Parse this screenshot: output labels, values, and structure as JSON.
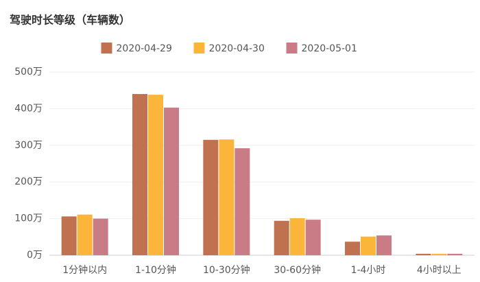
{
  "chart_data": {
    "type": "bar",
    "title": "驾驶时长等级（车辆数）",
    "categories": [
      "1分钟以内",
      "1-10分钟",
      "10-30分钟",
      "30-60分钟",
      "1-4小时",
      "4小时以上"
    ],
    "series": [
      {
        "name": "2020-04-29",
        "color": "#c0714f",
        "values": [
          106,
          440,
          315,
          94,
          37,
          4
        ]
      },
      {
        "name": "2020-04-30",
        "color": "#fbb53b",
        "values": [
          111,
          438,
          316,
          101,
          51,
          4
        ]
      },
      {
        "name": "2020-05-01",
        "color": "#c97c86",
        "values": [
          100,
          403,
          292,
          97,
          54,
          4
        ]
      }
    ],
    "ylim": [
      0,
      500
    ],
    "yticks": [
      {
        "value": 0,
        "label": "0万"
      },
      {
        "value": 100,
        "label": "100万"
      },
      {
        "value": 200,
        "label": "200万"
      },
      {
        "value": 300,
        "label": "300万"
      },
      {
        "value": 400,
        "label": "400万"
      },
      {
        "value": 500,
        "label": "500万"
      }
    ],
    "grid": true,
    "legend": "top"
  }
}
